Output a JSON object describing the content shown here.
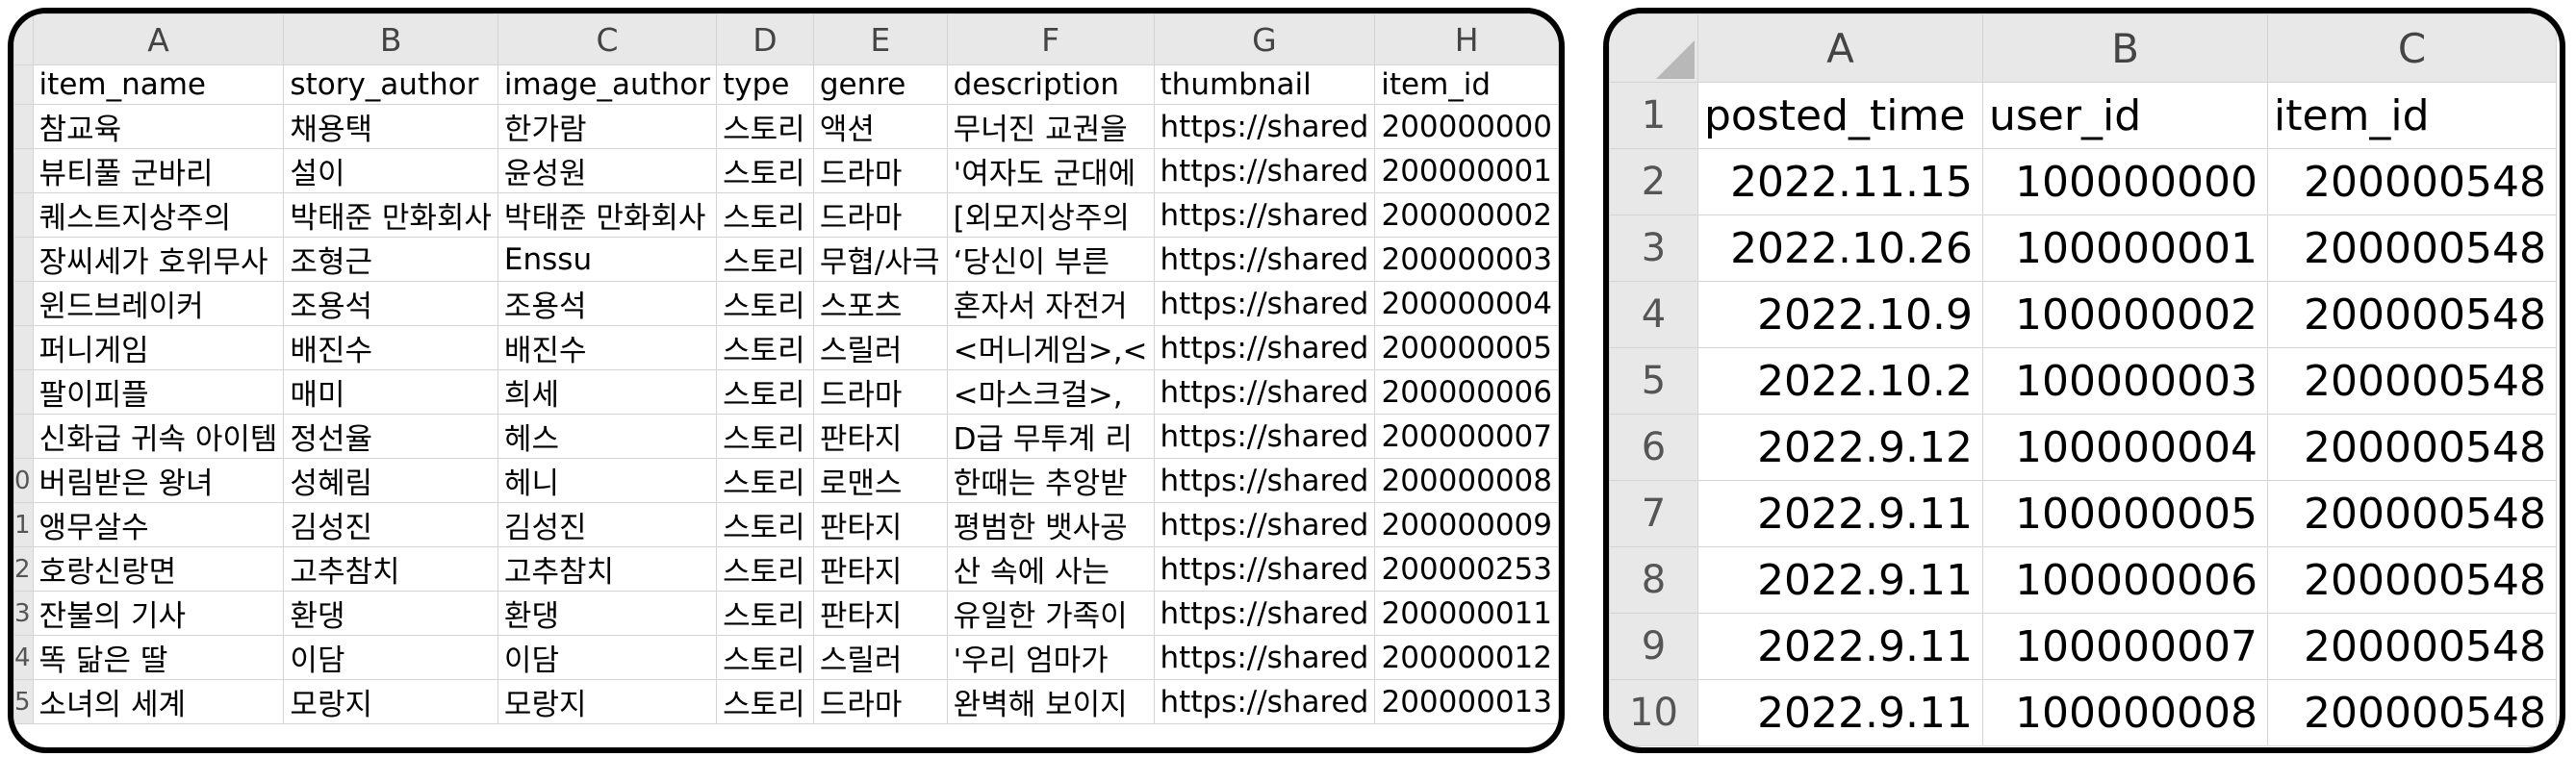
{
  "sheet1": {
    "columns": [
      "A",
      "B",
      "C",
      "D",
      "E",
      "F",
      "G",
      "H"
    ],
    "rows": [
      {
        "rn": "",
        "cells": [
          "item_name",
          "story_author",
          "image_author",
          "type",
          "genre",
          "description",
          "thumbnail",
          "item_id"
        ]
      },
      {
        "rn": "",
        "cells": [
          "참교육",
          "채용택",
          "한가람",
          "스토리",
          "액션",
          "무너진 교권을",
          "https://shared",
          "200000000"
        ]
      },
      {
        "rn": "",
        "cells": [
          "뷰티풀 군바리",
          "설이",
          "윤성원",
          "스토리",
          "드라마",
          "'여자도 군대에",
          "https://shared",
          "200000001"
        ]
      },
      {
        "rn": "",
        "cells": [
          "퀘스트지상주의",
          "박태준 만화회사",
          "박태준 만화회사",
          "스토리",
          "드라마",
          "[외모지상주의",
          "https://shared",
          "200000002"
        ]
      },
      {
        "rn": "",
        "cells": [
          "장씨세가 호위무사",
          "조형근",
          "Enssu",
          "스토리",
          "무협/사극",
          "‘당신이 부른",
          "https://shared",
          "200000003"
        ]
      },
      {
        "rn": "",
        "cells": [
          "윈드브레이커",
          "조용석",
          "조용석",
          "스토리",
          "스포츠",
          "혼자서 자전거",
          "https://shared",
          "200000004"
        ]
      },
      {
        "rn": "",
        "cells": [
          "퍼니게임",
          "배진수",
          "배진수",
          "스토리",
          "스릴러",
          "<머니게임>,<",
          "https://shared",
          "200000005"
        ]
      },
      {
        "rn": "",
        "cells": [
          "팔이피플",
          "매미",
          "희세",
          "스토리",
          "드라마",
          "<마스크걸>,",
          "https://shared",
          "200000006"
        ]
      },
      {
        "rn": "",
        "cells": [
          "신화급 귀속 아이템",
          "정선율",
          "헤스",
          "스토리",
          "판타지",
          "D급 무투계 리",
          "https://shared",
          "200000007"
        ]
      },
      {
        "rn": "0",
        "cells": [
          "버림받은 왕녀",
          "성혜림",
          "헤니",
          "스토리",
          "로맨스",
          "한때는 추앙받",
          "https://shared",
          "200000008"
        ]
      },
      {
        "rn": "1",
        "cells": [
          "앵무살수",
          "김성진",
          "김성진",
          "스토리",
          "판타지",
          "평범한 뱃사공",
          "https://shared",
          "200000009"
        ]
      },
      {
        "rn": "2",
        "cells": [
          "호랑신랑면",
          "고추참치",
          "고추참치",
          "스토리",
          "판타지",
          "산 속에 사는",
          "https://shared",
          "200000253"
        ]
      },
      {
        "rn": "3",
        "cells": [
          "잔불의 기사",
          "환댕",
          "환댕",
          "스토리",
          "판타지",
          "유일한 가족이",
          "https://shared",
          "200000011"
        ]
      },
      {
        "rn": "4",
        "cells": [
          "똑 닮은 딸",
          "이담",
          "이담",
          "스토리",
          "스릴러",
          "'우리 엄마가",
          "https://shared",
          "200000012"
        ]
      },
      {
        "rn": "5",
        "cells": [
          "소녀의 세계",
          "모랑지",
          "모랑지",
          "스토리",
          "드라마",
          "완벽해 보이지",
          "https://shared",
          "200000013"
        ]
      }
    ]
  },
  "sheet2": {
    "columns": [
      "A",
      "B",
      "C"
    ],
    "rows": [
      {
        "rn": "1",
        "cells": [
          "posted_time",
          "user_id",
          "item_id"
        ]
      },
      {
        "rn": "2",
        "cells": [
          "2022.11.15",
          "100000000",
          "200000548"
        ]
      },
      {
        "rn": "3",
        "cells": [
          "2022.10.26",
          "100000001",
          "200000548"
        ]
      },
      {
        "rn": "4",
        "cells": [
          "2022.10.9",
          "100000002",
          "200000548"
        ]
      },
      {
        "rn": "5",
        "cells": [
          "2022.10.2",
          "100000003",
          "200000548"
        ]
      },
      {
        "rn": "6",
        "cells": [
          "2022.9.12",
          "100000004",
          "200000548"
        ]
      },
      {
        "rn": "7",
        "cells": [
          "2022.9.11",
          "100000005",
          "200000548"
        ]
      },
      {
        "rn": "8",
        "cells": [
          "2022.9.11",
          "100000006",
          "200000548"
        ]
      },
      {
        "rn": "9",
        "cells": [
          "2022.9.11",
          "100000007",
          "200000548"
        ]
      },
      {
        "rn": "10",
        "cells": [
          "2022.9.11",
          "100000008",
          "200000548"
        ]
      }
    ]
  }
}
